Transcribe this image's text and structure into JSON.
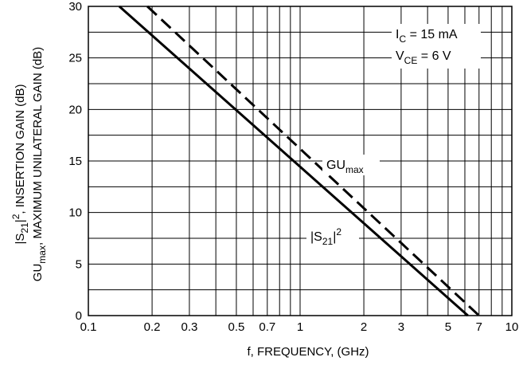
{
  "chart_data": {
    "type": "line",
    "title": "",
    "xlabel": "f, FREQUENCY, (GHz)",
    "ylabel_line1": "|S21|2, INSERTION GAIN (dB)",
    "ylabel_line2": "GUmax, MAXIMUM UNILATERAL GAIN (dB)",
    "x_scale": "log",
    "xlim": [
      0.1,
      10
    ],
    "ylim": [
      0,
      30
    ],
    "x_ticks": [
      {
        "value": 0.1,
        "label": "0.1"
      },
      {
        "value": 0.2,
        "label": "0.2"
      },
      {
        "value": 0.3,
        "label": "0.3"
      },
      {
        "value": 0.5,
        "label": "0.5"
      },
      {
        "value": 0.7,
        "label": "0.7"
      },
      {
        "value": 1,
        "label": "1"
      },
      {
        "value": 2,
        "label": "2"
      },
      {
        "value": 3,
        "label": "3"
      },
      {
        "value": 5,
        "label": "5"
      },
      {
        "value": 7,
        "label": "7"
      },
      {
        "value": 10,
        "label": "10"
      }
    ],
    "y_ticks": [
      0,
      5,
      10,
      15,
      20,
      25,
      30
    ],
    "y_minor_step": 2.5,
    "grid": true,
    "conditions": [
      {
        "main": "I",
        "sub": "C",
        "rest": " = 15 mA"
      },
      {
        "main": "V",
        "sub": "CE",
        "rest": " = 6 V"
      }
    ],
    "series": [
      {
        "label_main": "|S",
        "label_sub": "21",
        "label_rest": "|",
        "label_sup": "2",
        "style": "solid",
        "x": [
          0.14,
          6.2
        ],
        "y": [
          30,
          0
        ]
      },
      {
        "label_main": "GU",
        "label_sub": "max",
        "style": "dashed",
        "x": [
          0.19,
          7.0
        ],
        "y": [
          30,
          0
        ]
      }
    ],
    "colors": {
      "line": "#000000",
      "background": "#ffffff"
    }
  }
}
